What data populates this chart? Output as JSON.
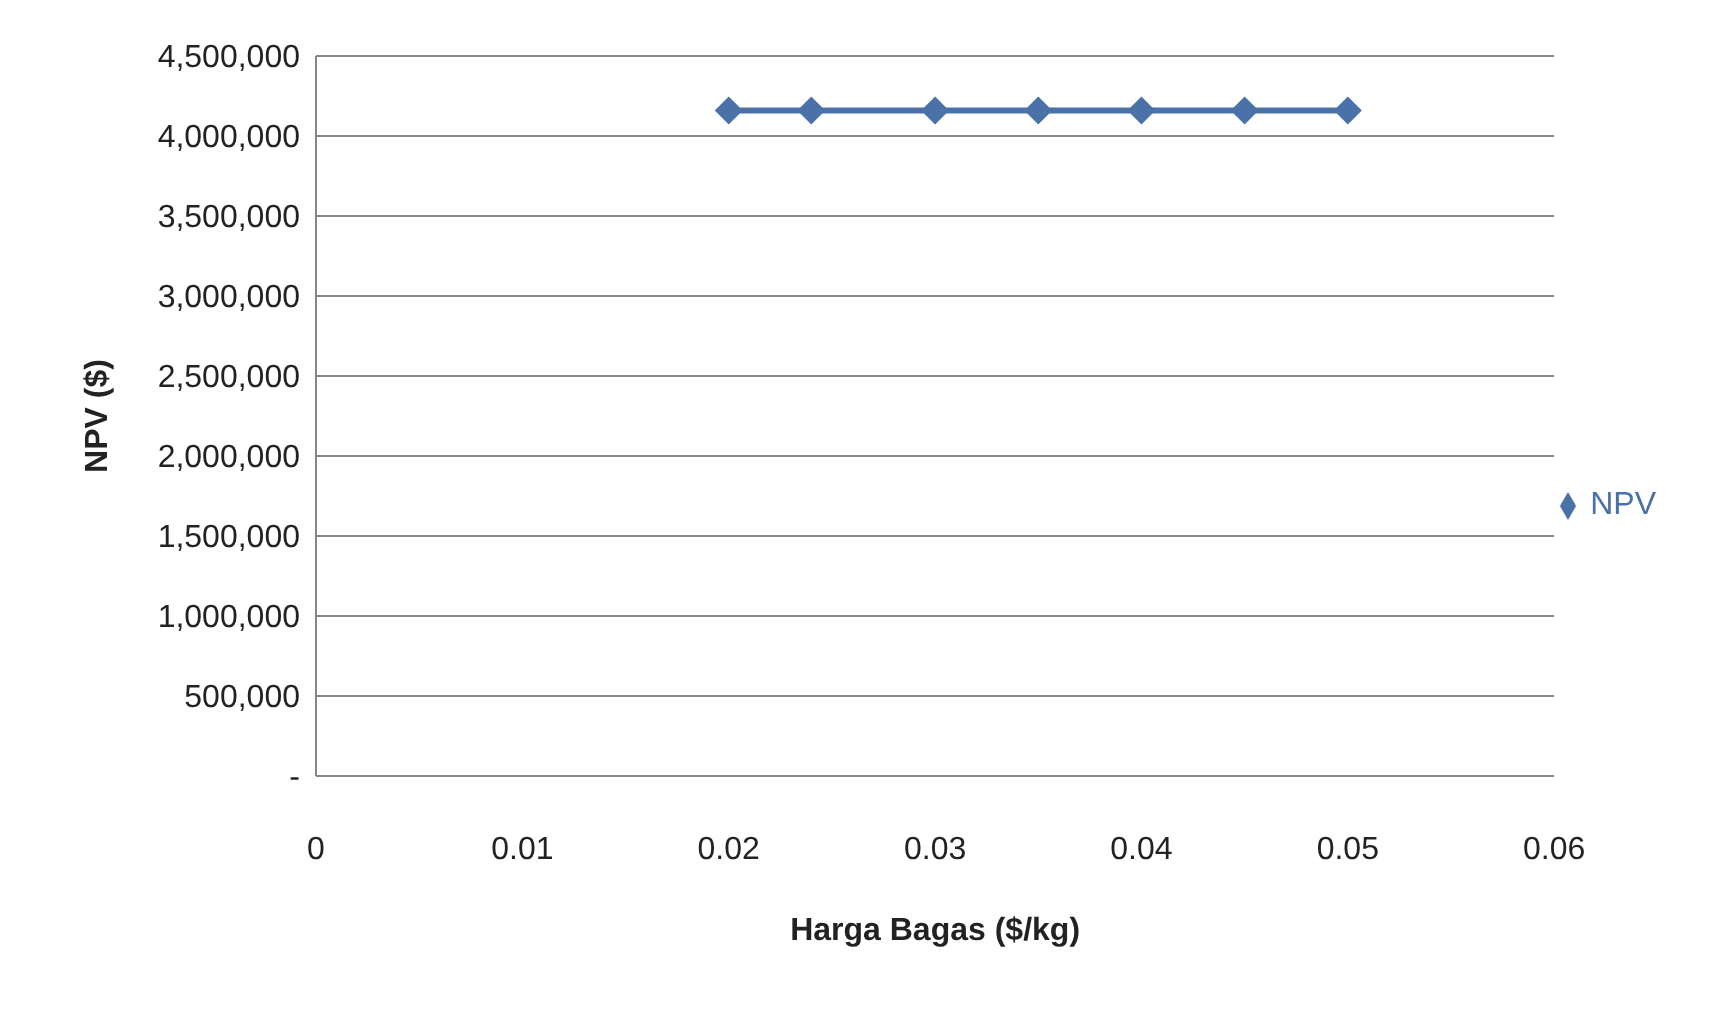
{
  "chart_data": {
    "type": "line",
    "xlabel": "Harga Bagas ($/kg)",
    "ylabel": "NPV ($)",
    "x": [
      0.02,
      0.024,
      0.03,
      0.035,
      0.04,
      0.045,
      0.05
    ],
    "series": [
      {
        "name": "NPV",
        "color": "#4a72a8",
        "values": [
          4160000,
          4160000,
          4160000,
          4160000,
          4160000,
          4160000,
          4160000
        ]
      }
    ],
    "xlim": [
      0,
      0.06
    ],
    "xticks": [
      0,
      0.01,
      0.02,
      0.03,
      0.04,
      0.05,
      0.06
    ],
    "ylim": [
      0,
      4500000
    ],
    "yticks": [
      {
        "value": 0,
        "label": "-"
      },
      {
        "value": 500000,
        "label": "500,000"
      },
      {
        "value": 1000000,
        "label": "1,000,000"
      },
      {
        "value": 1500000,
        "label": "1,500,000"
      },
      {
        "value": 2000000,
        "label": "2,000,000"
      },
      {
        "value": 2500000,
        "label": "2,500,000"
      },
      {
        "value": 3000000,
        "label": "3,000,000"
      },
      {
        "value": 3500000,
        "label": "3,500,000"
      },
      {
        "value": 4000000,
        "label": "4,000,000"
      },
      {
        "value": 4500000,
        "label": "4,500,000"
      }
    ],
    "grid": "y",
    "legend": "right",
    "marker": "diamond",
    "line_style": "solid"
  }
}
